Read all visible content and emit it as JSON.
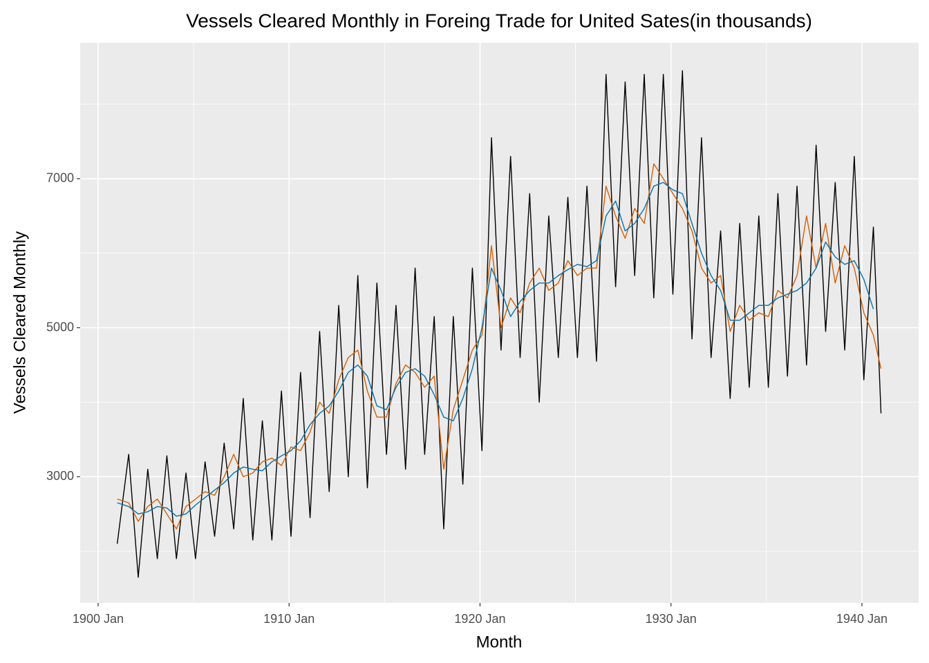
{
  "chart_data": {
    "type": "line",
    "title": "Vessels Cleared Monthly in Foreing Trade for United Sates(in thousands)",
    "x_label": "Month",
    "y_label": "Vessels Cleared Monthly",
    "x": [
      1901.0,
      1901.6,
      1902.1,
      1902.6,
      1903.1,
      1903.6,
      1904.1,
      1904.6,
      1905.1,
      1905.6,
      1906.1,
      1906.6,
      1907.1,
      1907.6,
      1908.1,
      1908.6,
      1909.1,
      1909.6,
      1910.1,
      1910.6,
      1911.1,
      1911.6,
      1912.1,
      1912.6,
      1913.1,
      1913.6,
      1914.1,
      1914.6,
      1915.1,
      1915.6,
      1916.1,
      1916.6,
      1917.1,
      1917.6,
      1918.1,
      1918.6,
      1919.1,
      1919.6,
      1920.1,
      1920.6,
      1921.1,
      1921.6,
      1922.1,
      1922.6,
      1923.1,
      1923.6,
      1924.1,
      1924.6,
      1925.1,
      1925.6,
      1926.1,
      1926.6,
      1927.1,
      1927.6,
      1928.1,
      1928.6,
      1929.1,
      1929.6,
      1930.1,
      1930.6,
      1931.1,
      1931.6,
      1932.1,
      1932.6,
      1933.1,
      1933.6,
      1934.1,
      1934.6,
      1935.1,
      1935.6,
      1936.1,
      1936.6,
      1937.1,
      1937.6,
      1938.1,
      1938.6,
      1939.1,
      1939.6,
      1940.1,
      1940.6,
      1941.0
    ],
    "series": [
      {
        "color": "#000000",
        "values": [
          2100,
          3300,
          1650,
          3100,
          1900,
          3280,
          1900,
          3050,
          1900,
          3200,
          2200,
          3450,
          2300,
          4050,
          2150,
          3750,
          2150,
          4150,
          2200,
          4400,
          2450,
          4950,
          2800,
          5300,
          3000,
          5700,
          2850,
          5600,
          3300,
          5300,
          3100,
          5800,
          3300,
          5150,
          2300,
          5150,
          2900,
          5800,
          3350,
          7550,
          4700,
          7300,
          4600,
          6800,
          4000,
          6500,
          4600,
          6750,
          4600,
          6900,
          4550,
          8400,
          5550,
          8300,
          5700,
          8400,
          5400,
          8400,
          5450,
          8450,
          4850,
          7550,
          4600,
          6300,
          4050,
          6400,
          4200,
          6500,
          4200,
          6800,
          4350,
          6900,
          4500,
          7450,
          4950,
          6950,
          4700,
          7300,
          4300,
          6350,
          3850
        ]
      },
      {
        "color": "#D55E00",
        "values": [
          2700,
          2650,
          2400,
          2600,
          2700,
          2500,
          2300,
          2600,
          2700,
          2800,
          2750,
          3000,
          3300,
          3000,
          3050,
          3200,
          3250,
          3150,
          3400,
          3350,
          3600,
          4000,
          3850,
          4300,
          4600,
          4700,
          4150,
          3800,
          3800,
          4250,
          4500,
          4400,
          4200,
          4350,
          3100,
          3900,
          4300,
          4700,
          4900,
          6100,
          5000,
          5400,
          5200,
          5600,
          5800,
          5500,
          5600,
          5900,
          5700,
          5800,
          5800,
          6900,
          6500,
          6200,
          6600,
          6400,
          7200,
          7000,
          6800,
          6600,
          6300,
          5800,
          5600,
          5700,
          4950,
          5300,
          5100,
          5200,
          5150,
          5500,
          5400,
          5700,
          6500,
          5800,
          6400,
          5600,
          6100,
          5800,
          5200,
          4900,
          4450
        ]
      },
      {
        "color": "#0072B2",
        "values": [
          2650,
          2600,
          2500,
          2530,
          2600,
          2580,
          2470,
          2500,
          2620,
          2720,
          2820,
          2920,
          3050,
          3130,
          3100,
          3080,
          3200,
          3280,
          3350,
          3480,
          3700,
          3850,
          3950,
          4150,
          4400,
          4500,
          4350,
          3950,
          3900,
          4200,
          4400,
          4450,
          4350,
          4100,
          3800,
          3750,
          4050,
          4450,
          5000,
          5800,
          5500,
          5150,
          5350,
          5500,
          5600,
          5600,
          5700,
          5780,
          5850,
          5820,
          5900,
          6500,
          6700,
          6300,
          6400,
          6600,
          6900,
          6950,
          6850,
          6800,
          6400,
          6000,
          5700,
          5500,
          5100,
          5100,
          5200,
          5300,
          5300,
          5400,
          5450,
          5500,
          5600,
          5800,
          6150,
          5950,
          5850,
          5900,
          5650,
          5250,
          null
        ]
      }
    ],
    "xlim": [
      1899.06,
      1942.97
    ],
    "xticks": [
      {
        "value": 1900,
        "label": "1900 Jan"
      },
      {
        "value": 1910,
        "label": "1910 Jan"
      },
      {
        "value": 1920,
        "label": "1920 Jan"
      },
      {
        "value": 1930,
        "label": "1930 Jan"
      },
      {
        "value": 1940,
        "label": "1940 Jan"
      }
    ],
    "xminor": [
      1905,
      1915,
      1925,
      1935
    ],
    "ylim": [
      1306,
      8824
    ],
    "yticks": [
      3000,
      5000,
      7000
    ],
    "yminor": [
      2000,
      4000,
      6000,
      8000
    ],
    "grid": true
  }
}
